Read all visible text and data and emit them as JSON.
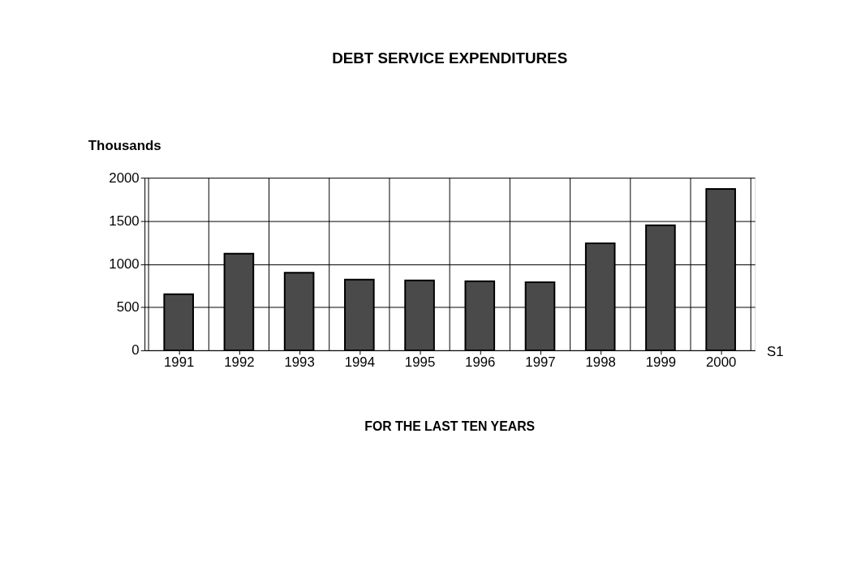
{
  "chart_data": {
    "type": "bar",
    "title": "DEBT SERVICE EXPENDITURES",
    "subtitle": "FOR THE LAST TEN YEARS",
    "ylabel": "Thousands",
    "categories": [
      "1991",
      "1992",
      "1993",
      "1994",
      "1995",
      "1996",
      "1997",
      "1998",
      "1999",
      "2000"
    ],
    "series": [
      {
        "name": "S1",
        "color": "#4a4a4a",
        "values": [
          650,
          1120,
          900,
          820,
          810,
          800,
          790,
          1240,
          1450,
          1870
        ]
      }
    ],
    "ylim": [
      0,
      2000
    ],
    "yticks": [
      0,
      500,
      1000,
      1500,
      2000
    ],
    "grid": true
  }
}
